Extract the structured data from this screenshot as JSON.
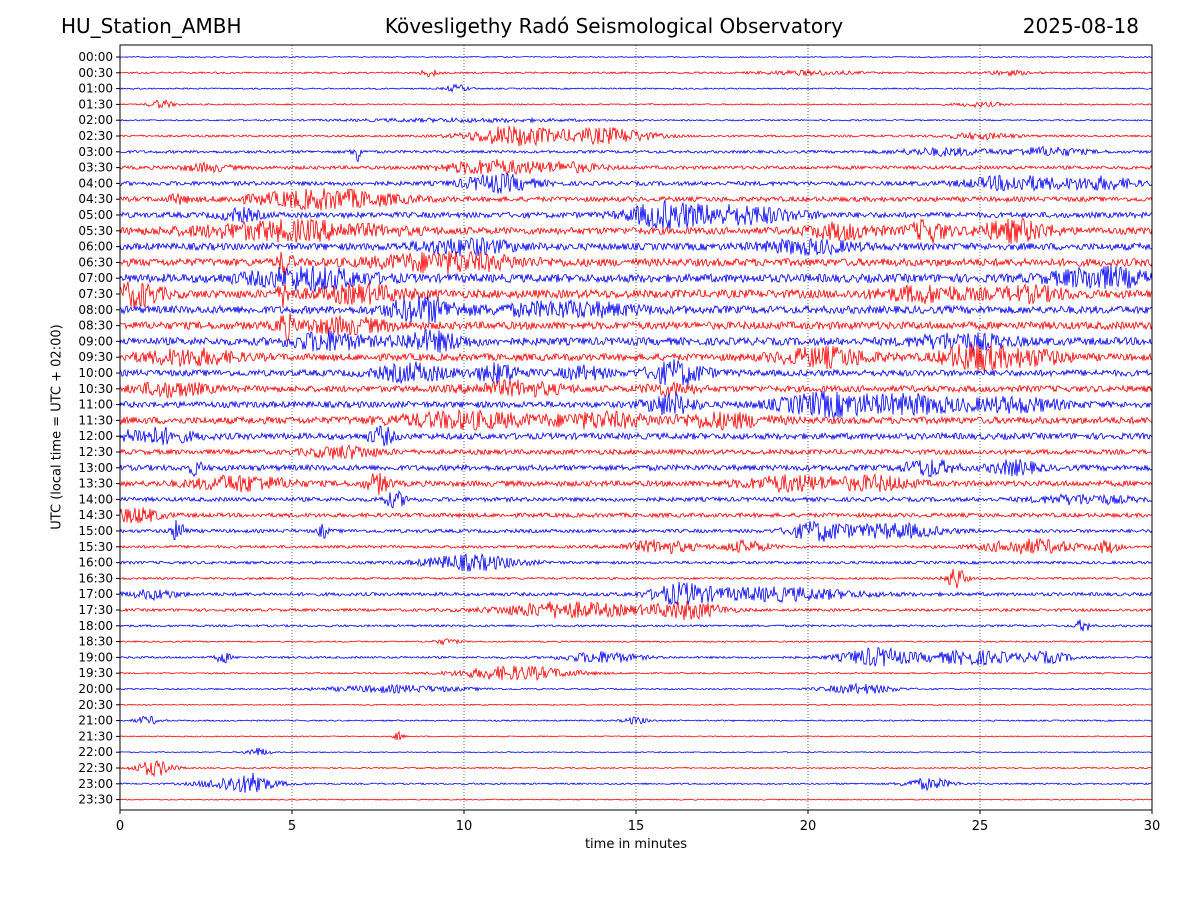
{
  "header": {
    "station": "HU_Station_AMBH",
    "observatory": "Kövesligethy Radó Seismological Observatory",
    "date": "2025-08-18"
  },
  "colors": {
    "even_trace": "#0000ff",
    "odd_trace": "#ff0000",
    "axis": "#000000",
    "grid": "#000000"
  },
  "chart_data": {
    "type": "line",
    "title": "",
    "xlabel": "time in minutes",
    "ylabel": "UTC (local time = UTC + 02:00)",
    "xlim": [
      0,
      30
    ],
    "x_ticks": [
      0,
      5,
      10,
      15,
      20,
      25,
      30
    ],
    "grid": "vertical dotted at x ticks",
    "row_colors": "alternating blue (00 rows) and red (30 rows)",
    "rows": [
      {
        "label": "00:00",
        "color": "blue",
        "noise": 0.08,
        "bursts": []
      },
      {
        "label": "00:30",
        "color": "red",
        "noise": 0.12,
        "bursts": [
          [
            9.0,
            0.4,
            0.5
          ],
          [
            20.0,
            2.0,
            0.3
          ],
          [
            25.8,
            1.0,
            0.3
          ]
        ]
      },
      {
        "label": "01:00",
        "color": "blue",
        "noise": 0.1,
        "bursts": [
          [
            9.8,
            0.5,
            0.5
          ]
        ]
      },
      {
        "label": "01:30",
        "color": "red",
        "noise": 0.1,
        "bursts": [
          [
            1.2,
            0.5,
            0.6
          ],
          [
            25.0,
            1.0,
            0.3
          ]
        ]
      },
      {
        "label": "02:00",
        "color": "blue",
        "noise": 0.1,
        "bursts": [
          [
            10.0,
            5.0,
            0.25
          ]
        ]
      },
      {
        "label": "02:30",
        "color": "red",
        "noise": 0.15,
        "bursts": [
          [
            11.5,
            2.0,
            1.4
          ],
          [
            14.2,
            1.8,
            1.1
          ],
          [
            25.0,
            1.5,
            0.4
          ]
        ]
      },
      {
        "label": "03:00",
        "color": "blue",
        "noise": 0.2,
        "bursts": [
          [
            6.9,
            0.2,
            1.5
          ],
          [
            24.0,
            2.0,
            0.5
          ],
          [
            27.0,
            1.5,
            0.6
          ]
        ]
      },
      {
        "label": "03:30",
        "color": "red",
        "noise": 0.25,
        "bursts": [
          [
            10.8,
            2.0,
            1.0
          ],
          [
            13.0,
            1.5,
            0.6
          ],
          [
            2.5,
            1.0,
            0.5
          ]
        ]
      },
      {
        "label": "04:00",
        "color": "blue",
        "noise": 0.3,
        "bursts": [
          [
            11.0,
            1.5,
            1.2
          ],
          [
            26.0,
            2.0,
            1.0
          ],
          [
            28.5,
            1.5,
            0.8
          ]
        ]
      },
      {
        "label": "04:30",
        "color": "red",
        "noise": 0.35,
        "bursts": [
          [
            6.0,
            3.0,
            1.3
          ],
          [
            1.7,
            0.4,
            0.6
          ]
        ]
      },
      {
        "label": "05:00",
        "color": "blue",
        "noise": 0.4,
        "bursts": [
          [
            15.8,
            1.5,
            1.6
          ],
          [
            18.0,
            2.5,
            1.2
          ],
          [
            3.5,
            0.8,
            0.8
          ]
        ]
      },
      {
        "label": "05:30",
        "color": "red",
        "noise": 0.5,
        "bursts": [
          [
            5.0,
            4.0,
            1.2
          ],
          [
            21.0,
            1.5,
            1.0
          ],
          [
            23.5,
            0.8,
            1.4
          ],
          [
            26.0,
            1.5,
            1.4
          ]
        ]
      },
      {
        "label": "06:00",
        "color": "blue",
        "noise": 0.5,
        "bursts": [
          [
            10.0,
            2.0,
            1.0
          ],
          [
            20.0,
            2.0,
            0.8
          ]
        ]
      },
      {
        "label": "06:30",
        "color": "red",
        "noise": 0.55,
        "bursts": [
          [
            9.5,
            3.0,
            1.2
          ],
          [
            4.8,
            0.3,
            1.5
          ]
        ]
      },
      {
        "label": "07:00",
        "color": "blue",
        "noise": 0.6,
        "bursts": [
          [
            5.5,
            2.5,
            1.4
          ],
          [
            28.5,
            2.0,
            1.3
          ]
        ]
      },
      {
        "label": "07:30",
        "color": "red",
        "noise": 0.6,
        "bursts": [
          [
            0.5,
            1.0,
            1.5
          ],
          [
            4.8,
            0.3,
            1.6
          ],
          [
            7.0,
            2.0,
            1.0
          ],
          [
            23.5,
            2.0,
            0.9
          ],
          [
            26.5,
            1.5,
            0.8
          ]
        ]
      },
      {
        "label": "08:00",
        "color": "blue",
        "noise": 0.55,
        "bursts": [
          [
            8.8,
            1.5,
            1.6
          ],
          [
            13.0,
            3.0,
            0.9
          ]
        ]
      },
      {
        "label": "08:30",
        "color": "red",
        "noise": 0.55,
        "bursts": [
          [
            4.8,
            0.3,
            1.6
          ],
          [
            6.5,
            2.0,
            0.9
          ]
        ]
      },
      {
        "label": "09:00",
        "color": "blue",
        "noise": 0.55,
        "bursts": [
          [
            6.0,
            1.5,
            1.2
          ],
          [
            9.0,
            1.5,
            1.2
          ],
          [
            24.5,
            2.0,
            1.0
          ]
        ]
      },
      {
        "label": "09:30",
        "color": "red",
        "noise": 0.5,
        "bursts": [
          [
            2.0,
            2.0,
            1.0
          ],
          [
            20.5,
            2.0,
            1.2
          ],
          [
            24.8,
            1.3,
            1.8
          ],
          [
            26.5,
            1.5,
            1.0
          ]
        ]
      },
      {
        "label": "10:00",
        "color": "blue",
        "noise": 0.45,
        "bursts": [
          [
            8.5,
            1.5,
            1.2
          ],
          [
            11.0,
            1.0,
            1.2
          ],
          [
            16.2,
            1.2,
            1.6
          ],
          [
            13.5,
            1.0,
            0.8
          ]
        ]
      },
      {
        "label": "10:30",
        "color": "red",
        "noise": 0.45,
        "bursts": [
          [
            1.5,
            1.5,
            0.9
          ],
          [
            11.5,
            2.0,
            0.9
          ],
          [
            16.0,
            1.0,
            0.8
          ]
        ]
      },
      {
        "label": "11:00",
        "color": "blue",
        "noise": 0.45,
        "bursts": [
          [
            16.0,
            1.0,
            1.4
          ],
          [
            20.5,
            2.0,
            1.5
          ],
          [
            23.0,
            2.0,
            1.2
          ],
          [
            26.0,
            2.0,
            0.9
          ]
        ]
      },
      {
        "label": "11:30",
        "color": "red",
        "noise": 0.5,
        "bursts": [
          [
            10.0,
            3.0,
            1.0
          ],
          [
            14.0,
            2.0,
            0.9
          ],
          [
            17.5,
            2.0,
            0.9
          ]
        ]
      },
      {
        "label": "12:00",
        "color": "blue",
        "noise": 0.45,
        "bursts": [
          [
            1.0,
            1.5,
            1.0
          ],
          [
            7.6,
            0.5,
            1.2
          ]
        ]
      },
      {
        "label": "12:30",
        "color": "red",
        "noise": 0.35,
        "bursts": [
          [
            6.5,
            1.5,
            0.8
          ]
        ]
      },
      {
        "label": "13:00",
        "color": "blue",
        "noise": 0.4,
        "bursts": [
          [
            2.2,
            0.3,
            0.9
          ],
          [
            23.5,
            1.0,
            1.1
          ],
          [
            26.0,
            1.0,
            0.9
          ]
        ]
      },
      {
        "label": "13:30",
        "color": "red",
        "noise": 0.4,
        "bursts": [
          [
            3.5,
            2.0,
            1.0
          ],
          [
            7.5,
            0.5,
            1.3
          ],
          [
            19.5,
            2.0,
            1.0
          ],
          [
            22.0,
            1.5,
            0.9
          ]
        ]
      },
      {
        "label": "14:00",
        "color": "blue",
        "noise": 0.3,
        "bursts": [
          [
            8.0,
            0.5,
            1.0
          ],
          [
            28.0,
            2.0,
            0.6
          ]
        ]
      },
      {
        "label": "14:30",
        "color": "red",
        "noise": 0.3,
        "bursts": [
          [
            0.5,
            1.0,
            1.0
          ]
        ]
      },
      {
        "label": "15:00",
        "color": "blue",
        "noise": 0.25,
        "bursts": [
          [
            1.7,
            0.3,
            1.6
          ],
          [
            5.9,
            0.2,
            1.0
          ],
          [
            20.3,
            1.2,
            1.3
          ],
          [
            22.5,
            2.0,
            1.0
          ]
        ]
      },
      {
        "label": "15:30",
        "color": "red",
        "noise": 0.2,
        "bursts": [
          [
            15.7,
            1.5,
            0.9
          ],
          [
            18.2,
            1.0,
            0.8
          ],
          [
            26.5,
            2.0,
            1.0
          ],
          [
            28.7,
            0.5,
            0.8
          ]
        ]
      },
      {
        "label": "16:00",
        "color": "blue",
        "noise": 0.2,
        "bursts": [
          [
            10.2,
            2.0,
            1.1
          ]
        ]
      },
      {
        "label": "16:30",
        "color": "red",
        "noise": 0.15,
        "bursts": [
          [
            24.3,
            0.4,
            1.6
          ]
        ]
      },
      {
        "label": "17:00",
        "color": "blue",
        "noise": 0.25,
        "bursts": [
          [
            16.3,
            1.2,
            1.3
          ],
          [
            19.0,
            3.5,
            0.9
          ],
          [
            1.0,
            1.0,
            0.6
          ]
        ]
      },
      {
        "label": "17:30",
        "color": "red",
        "noise": 0.2,
        "bursts": [
          [
            13.0,
            3.0,
            1.1
          ],
          [
            16.5,
            1.5,
            1.2
          ]
        ]
      },
      {
        "label": "18:00",
        "color": "blue",
        "noise": 0.15,
        "bursts": [
          [
            28.0,
            0.3,
            0.9
          ]
        ]
      },
      {
        "label": "18:30",
        "color": "red",
        "noise": 0.1,
        "bursts": [
          [
            9.5,
            0.5,
            0.4
          ]
        ]
      },
      {
        "label": "19:00",
        "color": "blue",
        "noise": 0.15,
        "bursts": [
          [
            3.0,
            0.3,
            0.8
          ],
          [
            14.0,
            1.5,
            0.8
          ],
          [
            22.0,
            1.5,
            1.3
          ],
          [
            24.8,
            2.0,
            1.0
          ],
          [
            27.0,
            1.0,
            0.7
          ]
        ]
      },
      {
        "label": "19:30",
        "color": "red",
        "noise": 0.1,
        "bursts": [
          [
            11.5,
            2.5,
            1.0
          ]
        ]
      },
      {
        "label": "20:00",
        "color": "blue",
        "noise": 0.1,
        "bursts": [
          [
            8.0,
            3.0,
            0.5
          ],
          [
            21.5,
            1.5,
            0.7
          ]
        ]
      },
      {
        "label": "20:30",
        "color": "red",
        "noise": 0.08,
        "bursts": []
      },
      {
        "label": "21:00",
        "color": "blue",
        "noise": 0.1,
        "bursts": [
          [
            0.8,
            0.5,
            0.6
          ],
          [
            15.0,
            0.5,
            0.5
          ]
        ]
      },
      {
        "label": "21:30",
        "color": "red",
        "noise": 0.08,
        "bursts": [
          [
            8.1,
            0.2,
            0.6
          ]
        ]
      },
      {
        "label": "22:00",
        "color": "blue",
        "noise": 0.08,
        "bursts": [
          [
            4.0,
            0.5,
            0.6
          ]
        ]
      },
      {
        "label": "22:30",
        "color": "red",
        "noise": 0.1,
        "bursts": [
          [
            1.0,
            0.8,
            1.1
          ]
        ]
      },
      {
        "label": "23:00",
        "color": "blue",
        "noise": 0.12,
        "bursts": [
          [
            3.5,
            1.5,
            1.2
          ],
          [
            4.0,
            0.2,
            1.5
          ],
          [
            23.5,
            1.0,
            0.8
          ]
        ]
      },
      {
        "label": "23:30",
        "color": "red",
        "noise": 0.08,
        "bursts": []
      }
    ]
  }
}
